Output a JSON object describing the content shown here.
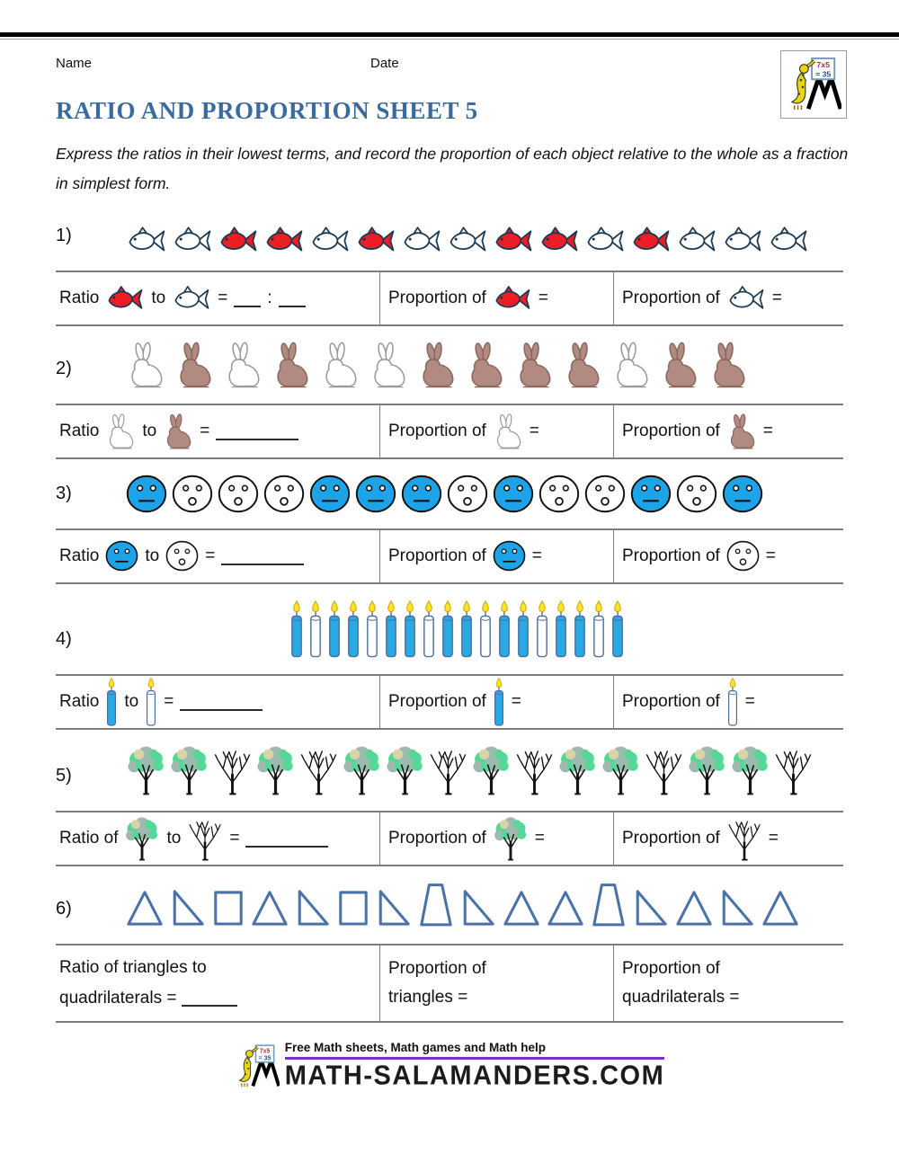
{
  "header": {
    "name_label": "Name",
    "date_label": "Date",
    "logo": {
      "equation_line1": "7x5",
      "equation_line2": "= 35"
    }
  },
  "title": "RATIO AND PROPORTION SHEET 5",
  "instructions": "Express the ratios in their lowest terms, and record the proportion of each object relative to the whole as a fraction in simplest form.",
  "colors": {
    "title_blue": "#3A6B9E",
    "fish_red": "#EE1C25",
    "fish_outline": "#1C3A52",
    "rabbit_brown": "#B18B82",
    "rabbit_brown_outline": "#8A675F",
    "rabbit_white_outline": "#9A9A9A",
    "face_blue": "#1CA3E8",
    "candle_blue": "#29A9E4",
    "candle_outline": "#4A6E9E",
    "flame_yellow": "#FFE81A",
    "flame_outline": "#D9A520",
    "tree_green": "#55D79A",
    "tree_foliage_gray": "#9FB9AE",
    "tree_khaki": "#D9D2A6",
    "shape_blue": "#4A72A8",
    "underline_purple": "#7B2FBE"
  },
  "problems": [
    {
      "number": "1)",
      "icon_type": "fish",
      "sequence": [
        "white",
        "white",
        "red",
        "red",
        "white",
        "red",
        "white",
        "white",
        "red",
        "red",
        "white",
        "red",
        "white",
        "white",
        "white"
      ],
      "ratio_label": "Ratio",
      "to_label": "to",
      "equals": "=",
      "colon": ":",
      "blank_style": "pair",
      "variant_a": "red",
      "variant_b": "white",
      "proportion_label": "Proportion of"
    },
    {
      "number": "2)",
      "icon_type": "rabbit",
      "sequence": [
        "white",
        "brown",
        "white",
        "brown",
        "white",
        "white",
        "brown",
        "brown",
        "brown",
        "brown",
        "white",
        "brown",
        "brown"
      ],
      "ratio_label": "Ratio",
      "to_label": "to",
      "equals": "=",
      "blank_style": "single",
      "variant_a": "white",
      "variant_b": "brown",
      "proportion_label": "Proportion of"
    },
    {
      "number": "3)",
      "icon_type": "face",
      "sequence": [
        "blue",
        "white",
        "white",
        "white",
        "blue",
        "blue",
        "blue",
        "white",
        "blue",
        "white",
        "white",
        "blue",
        "white",
        "blue"
      ],
      "ratio_label": "Ratio",
      "to_label": "to",
      "equals": "=",
      "blank_style": "single",
      "variant_a": "blue",
      "variant_b": "white",
      "proportion_label": "Proportion of"
    },
    {
      "number": "4)",
      "icon_type": "candle",
      "sequence": [
        "blue",
        "white",
        "blue",
        "blue",
        "white",
        "blue",
        "blue",
        "white",
        "blue",
        "blue",
        "white",
        "blue",
        "blue",
        "white",
        "blue",
        "blue",
        "white",
        "blue"
      ],
      "ratio_label": "Ratio",
      "to_label": "to",
      "equals": "=",
      "blank_style": "single",
      "variant_a": "blue",
      "variant_b": "white",
      "proportion_label": "Proportion of"
    },
    {
      "number": "5)",
      "icon_type": "tree",
      "sequence": [
        "leafy",
        "leafy",
        "bare",
        "leafy",
        "bare",
        "leafy",
        "leafy",
        "bare",
        "leafy",
        "bare",
        "leafy",
        "leafy",
        "bare",
        "leafy",
        "leafy",
        "bare"
      ],
      "ratio_label": "Ratio of",
      "to_label": "to",
      "equals": "=",
      "blank_style": "single",
      "variant_a": "leafy",
      "variant_b": "bare",
      "proportion_label": "Proportion of"
    },
    {
      "number": "6)",
      "icon_type": "shape",
      "sequence": [
        "triangle",
        "right-triangle",
        "rectangle",
        "triangle",
        "right-triangle",
        "rectangle",
        "right-triangle",
        "trapezoid",
        "right-triangle",
        "triangle",
        "triangle",
        "trapezoid",
        "right-triangle",
        "triangle",
        "right-triangle",
        "triangle"
      ],
      "text_cells": [
        {
          "lines": [
            {
              "text": "Ratio of triangles to",
              "blank": false
            },
            {
              "text": "quadrilaterals =",
              "blank": true
            }
          ]
        },
        {
          "lines": [
            {
              "text": "Proportion of",
              "blank": false
            },
            {
              "text": "triangles =",
              "blank": false
            }
          ]
        },
        {
          "lines": [
            {
              "text": "Proportion of",
              "blank": false
            },
            {
              "text": "quadrilaterals =",
              "blank": false
            }
          ]
        }
      ]
    }
  ],
  "footer": {
    "tagline": "Free Math sheets, Math games and Math help",
    "site": "Math-Salamanders.com"
  }
}
